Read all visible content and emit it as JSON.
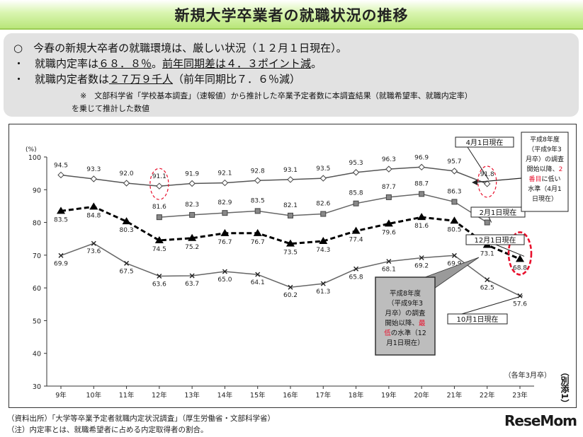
{
  "title": "新規大学卒業者の就職状況の推移",
  "summary": {
    "line1": "○　今春の新規大卒者の就職環境は、厳しい状況（１２月１日現在）。",
    "line2_prefix": "・　就職内定率は",
    "line2_u1": "６８．８％",
    "line2_mid": "。",
    "line2_u2": "前年同期差は４．３ポイント減",
    "line2_suffix": "。",
    "line3_prefix": "・　就職内定者数は",
    "line3_u": "２７万９千人",
    "line3_suffix": "（前年同期比７．６％減）",
    "note1": "※　文部科学省「学校基本調査」（速報値）から推計した卒業予定者数に本調査結果（就職希望率、就職内定率）",
    "note2": "を乗じて推計した数値"
  },
  "chart_data": {
    "type": "line",
    "unit_label": "(%)",
    "ylim": [
      30,
      100
    ],
    "yticks": [
      30,
      40,
      50,
      60,
      70,
      80,
      90,
      100
    ],
    "categories": [
      "9年",
      "10年",
      "11年",
      "12年",
      "13年",
      "14年",
      "15年",
      "16年",
      "17年",
      "18年",
      "19年",
      "20年",
      "21年",
      "22年",
      "23年"
    ],
    "xnote": "（各年3月卒）",
    "series": [
      {
        "name": "4月1日現在",
        "color": "#555555",
        "marker": "diamond",
        "style": "solid",
        "values": [
          94.5,
          93.3,
          92.0,
          91.1,
          91.9,
          92.1,
          92.8,
          93.1,
          93.5,
          95.3,
          96.3,
          96.9,
          95.7,
          91.8,
          null
        ]
      },
      {
        "name": "2月1日現在",
        "color": "#666666",
        "marker": "square",
        "style": "solid",
        "values": [
          null,
          null,
          null,
          81.6,
          82.3,
          82.9,
          83.5,
          82.1,
          82.6,
          85.8,
          87.7,
          88.7,
          86.3,
          80.0,
          null
        ]
      },
      {
        "name": "12月1日現在",
        "color": "#000000",
        "marker": "triangle",
        "style": "dashed",
        "values": [
          83.5,
          84.8,
          80.3,
          74.5,
          75.2,
          76.7,
          76.7,
          73.5,
          74.3,
          77.4,
          79.6,
          81.6,
          80.5,
          73.1,
          68.8
        ]
      },
      {
        "name": "10月1日現在",
        "color": "#666666",
        "marker": "x",
        "style": "solid",
        "values": [
          69.9,
          73.6,
          67.5,
          63.6,
          63.7,
          65.0,
          64.1,
          60.2,
          61.3,
          65.8,
          68.1,
          69.2,
          69.9,
          62.5,
          57.6
        ]
      }
    ],
    "annotations": {
      "april_box": [
        "平成8年度",
        "（平成9年3",
        "月卒）の調査",
        "開始以降、2",
        "番目に低い",
        "水準（4月1",
        "日現在）"
      ],
      "dec_box": [
        "平成8年度",
        "（平成9年3",
        "月卒）の調査",
        "開始以降、最",
        "低の水準（12",
        "月1日現在）"
      ],
      "highlight_red": "#e8112d"
    }
  },
  "footer": {
    "source": "（資料出所）「大学等卒業予定者就職内定状況調査」（厚生労働省・文部科学省）",
    "note": "（注）内定率とは、就職希望者に占める内定取得者の割合。",
    "logo": "ReseMom",
    "side": "（別添1）"
  }
}
